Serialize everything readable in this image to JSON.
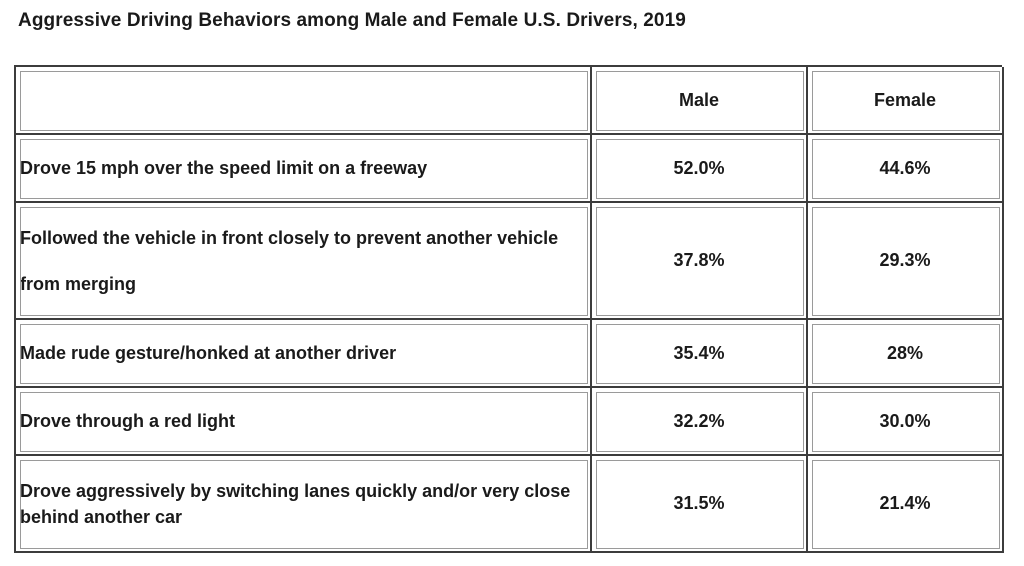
{
  "title": "Aggressive Driving Behaviors among Male and Female U.S. Drivers, 2019",
  "table": {
    "headers": [
      "",
      "Male",
      "Female"
    ],
    "rows": [
      {
        "behavior": "Drove 15 mph over the speed limit on a freeway",
        "male": "52.0%",
        "female": "44.6%"
      },
      {
        "behavior": "Followed the vehicle in front closely to prevent another vehicle from merging",
        "male": "37.8%",
        "female": "29.3%"
      },
      {
        "behavior": "Made rude gesture/honked at another driver",
        "male": "35.4%",
        "female": "28%"
      },
      {
        "behavior": "Drove through a red light",
        "male": "32.2%",
        "female": "30.0%"
      },
      {
        "behavior": "Drove aggressively by switching lanes quickly and/or very close behind another car",
        "male": "31.5%",
        "female": "21.4%"
      }
    ]
  }
}
